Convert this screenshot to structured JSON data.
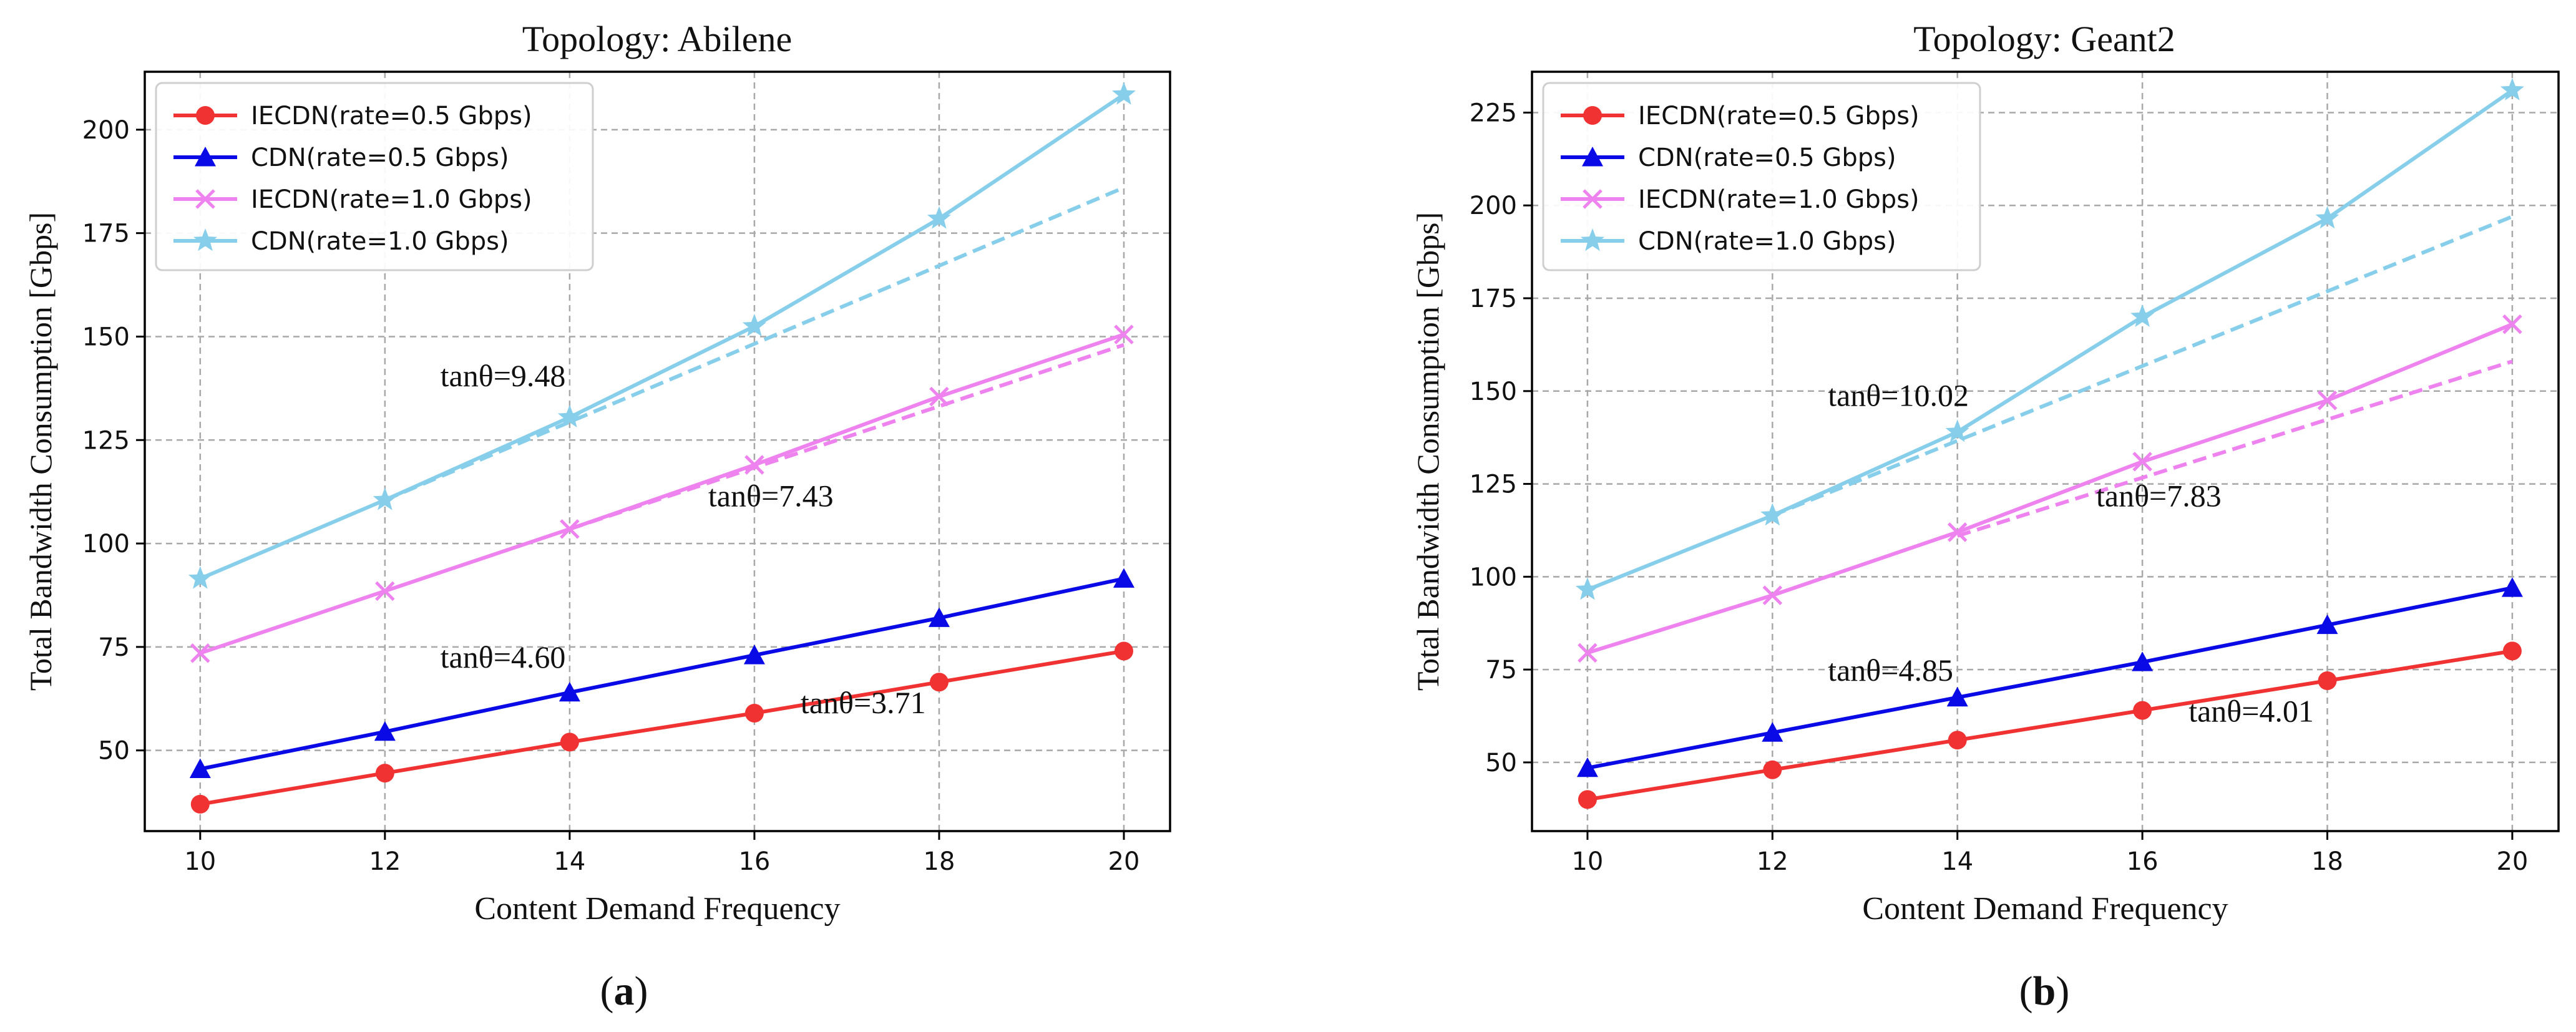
{
  "figure": {
    "panels": [
      {
        "caption": "(a)",
        "caption_letter": "a"
      },
      {
        "caption": "(b)",
        "caption_letter": "b"
      }
    ]
  },
  "chart_data": [
    {
      "type": "line",
      "title": "Topology: Abilene",
      "xlabel": "Content Demand Frequency",
      "ylabel": "Total Bandwidth Consumption [Gbps]",
      "x": [
        10,
        12,
        14,
        16,
        18,
        20
      ],
      "xticks": [
        10,
        12,
        14,
        16,
        18,
        20
      ],
      "yticks": [
        50,
        75,
        100,
        125,
        150,
        175,
        200
      ],
      "xlim": [
        9.4,
        20.5
      ],
      "ylim": [
        30.5,
        214
      ],
      "grid": true,
      "legend_loc": "upper-left",
      "series": [
        {
          "name": "IECDN(rate=0.5 Gbps)",
          "color": "#f03232",
          "marker": "circle",
          "values": [
            37,
            44.5,
            52,
            59,
            66.5,
            74
          ]
        },
        {
          "name": "CDN(rate=0.5 Gbps)",
          "color": "#0a0ae6",
          "marker": "triangle",
          "values": [
            45.5,
            54.5,
            64,
            73,
            82,
            91.5
          ]
        },
        {
          "name": "IECDN(rate=1.0 Gbps)",
          "color": "#ee82ee",
          "marker": "x",
          "values": [
            73.5,
            88.5,
            103.5,
            119,
            135.5,
            150.5
          ]
        },
        {
          "name": "CDN(rate=1.0 Gbps)",
          "color": "#87ceeb",
          "marker": "star",
          "values": [
            91.5,
            110.5,
            130.5,
            152.5,
            178.5,
            208.5
          ]
        }
      ],
      "trend_lines": [
        {
          "color": "#ee82ee",
          "start": [
            14,
            103.5
          ],
          "end": [
            20,
            148
          ]
        },
        {
          "color": "#87ceeb",
          "start": [
            12,
            110.5
          ],
          "end": [
            20,
            186
          ]
        }
      ],
      "annotations": [
        {
          "text": "tanθ=9.48",
          "x": 12.6,
          "y": 138
        },
        {
          "text": "tanθ=7.43",
          "x": 15.5,
          "y": 109
        },
        {
          "text": "tanθ=4.60",
          "x": 12.6,
          "y": 70
        },
        {
          "text": "tanθ=3.71",
          "x": 16.5,
          "y": 59
        }
      ]
    },
    {
      "type": "line",
      "title": "Topology: Geant2",
      "xlabel": "Content Demand Frequency",
      "ylabel": "Total Bandwidth Consumption [Gbps]",
      "x": [
        10,
        12,
        14,
        16,
        18,
        20
      ],
      "xticks": [
        10,
        12,
        14,
        16,
        18,
        20
      ],
      "yticks": [
        50,
        75,
        100,
        125,
        150,
        175,
        200,
        225
      ],
      "xlim": [
        9.4,
        20.5
      ],
      "ylim": [
        31.5,
        236
      ],
      "grid": true,
      "legend_loc": "upper-left",
      "series": [
        {
          "name": "IECDN(rate=0.5 Gbps)",
          "color": "#f03232",
          "marker": "circle",
          "values": [
            40,
            48,
            56,
            64,
            72,
            80
          ]
        },
        {
          "name": "CDN(rate=0.5 Gbps)",
          "color": "#0a0ae6",
          "marker": "triangle",
          "values": [
            48.5,
            58,
            67.5,
            77,
            87,
            97
          ]
        },
        {
          "name": "IECDN(rate=1.0 Gbps)",
          "color": "#ee82ee",
          "marker": "x",
          "values": [
            79.5,
            95,
            112,
            131,
            147.5,
            168
          ]
        },
        {
          "name": "CDN(rate=1.0 Gbps)",
          "color": "#87ceeb",
          "marker": "star",
          "values": [
            96.5,
            116.5,
            139,
            170,
            196.5,
            231
          ]
        }
      ],
      "trend_lines": [
        {
          "color": "#ee82ee",
          "start": [
            14,
            111
          ],
          "end": [
            20,
            158
          ]
        },
        {
          "color": "#87ceeb",
          "start": [
            12,
            116.5
          ],
          "end": [
            20,
            197
          ]
        }
      ],
      "annotations": [
        {
          "text": "tanθ=10.02",
          "x": 12.6,
          "y": 146
        },
        {
          "text": "tanθ=7.83",
          "x": 15.5,
          "y": 119
        },
        {
          "text": "tanθ=4.85",
          "x": 12.6,
          "y": 72
        },
        {
          "text": "tanθ=4.01",
          "x": 16.5,
          "y": 61
        }
      ]
    }
  ]
}
